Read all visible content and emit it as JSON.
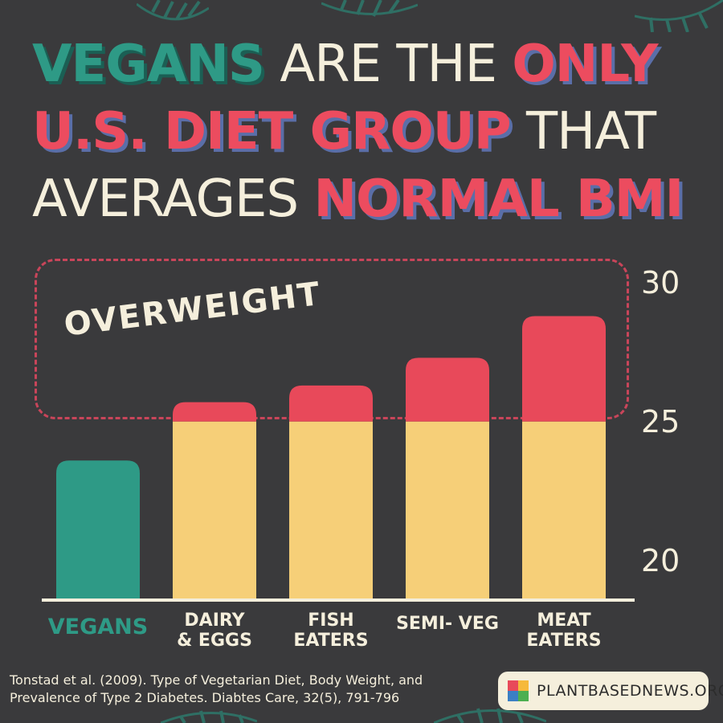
{
  "headline": {
    "line1": [
      {
        "text": "VEGANS",
        "style": "teal"
      },
      {
        "text": " ARE THE ",
        "style": "cream"
      },
      {
        "text": "ONLY",
        "style": "red"
      }
    ],
    "line2": [
      {
        "text": "U.S. DIET GROUP",
        "style": "red"
      },
      {
        "text": " THAT",
        "style": "cream"
      }
    ],
    "line3": [
      {
        "text": "AVERAGES ",
        "style": "cream"
      },
      {
        "text": "NORMAL BMI",
        "style": "red"
      }
    ]
  },
  "overweight_label": "OVERWEIGHT",
  "chart_data": {
    "type": "bar",
    "categories": [
      "VEGANS",
      "DAIRY\n& EGGS",
      "FISH\nEATERS",
      "SEMI- VEG",
      "MEAT\nEATERS"
    ],
    "values": [
      23.6,
      25.7,
      26.3,
      27.3,
      28.8
    ],
    "yticks": [
      20,
      25,
      30
    ],
    "ylim": [
      18.6,
      30
    ],
    "overweight_threshold": 25,
    "colors": {
      "normal_vegan": "#2e9a86",
      "normal": "#f6cf78",
      "overweight": "#e8495a",
      "axis": "#f5efdc",
      "vegan_label": "#2e9a86"
    },
    "grid": false,
    "legend": "none"
  },
  "citation": "Tonstad et al. (2009). Type of Vegetarian Diet, Body Weight, and Prevalence of Type 2 Diabetes. Diabtes Care, 32(5), 791-796",
  "brand": {
    "text": "PLANTBASEDNEWS.ORG",
    "logo_colors": [
      "#e8495a",
      "#f6b93b",
      "#3b7fc4",
      "#4caf50"
    ]
  }
}
